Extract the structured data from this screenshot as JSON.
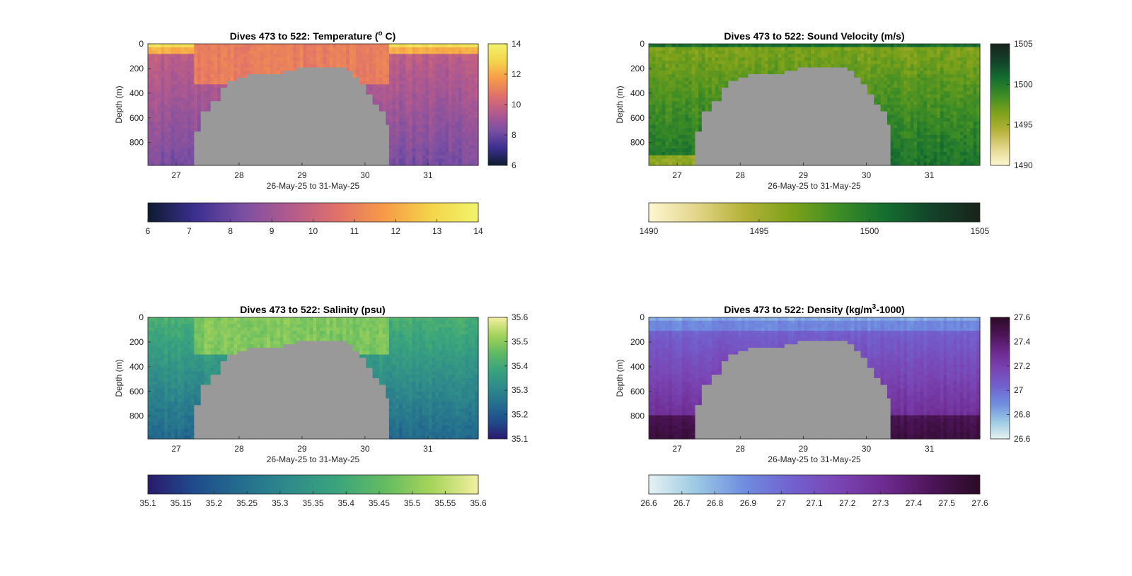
{
  "chart_data": [
    {
      "type": "heatmap",
      "variable": "temperature",
      "title_prefix": "Dives 473 to 522: Temperature (",
      "title_sup": "o",
      "title_suffix": " C)",
      "xlabel": "26-May-25 to 31-May-25",
      "ylabel": "Depth (m)",
      "x_ticks": [
        "27",
        "28",
        "29",
        "30",
        "31"
      ],
      "y_ticks": [
        "0",
        "200",
        "400",
        "600",
        "800"
      ],
      "side_colorbar_ticks": [
        "14",
        "12",
        "10",
        "8",
        "6"
      ],
      "bottom_colorbar_ticks": [
        "6",
        "7",
        "8",
        "9",
        "10",
        "11",
        "12",
        "13",
        "14"
      ],
      "clim": [
        6,
        14
      ],
      "colormap": [
        "#0d1b2f",
        "#3b2f8f",
        "#7a4fa3",
        "#b25a8e",
        "#e0706a",
        "#f79a48",
        "#f4d44a",
        "#f2f46c"
      ]
    },
    {
      "type": "heatmap",
      "variable": "sound_velocity",
      "title_prefix": "Dives 473 to 522: Sound Velocity (m/s)",
      "title_sup": "",
      "title_suffix": "",
      "xlabel": "26-May-25 to 31-May-25",
      "ylabel": "Depth (m)",
      "x_ticks": [
        "27",
        "28",
        "29",
        "30",
        "31"
      ],
      "y_ticks": [
        "0",
        "200",
        "400",
        "600",
        "800"
      ],
      "side_colorbar_ticks": [
        "1505",
        "1500",
        "1495",
        "1490"
      ],
      "bottom_colorbar_ticks": [
        "1490",
        "1495",
        "1500",
        "1505"
      ],
      "clim": [
        1490,
        1505
      ],
      "colormap": [
        "#fdf7d2",
        "#e3d58a",
        "#b5b23a",
        "#7ea21a",
        "#3f8d25",
        "#146e30",
        "#13422a",
        "#18231a"
      ]
    },
    {
      "type": "heatmap",
      "variable": "salinity",
      "title_prefix": "Dives 473 to 522: Salinity (psu)",
      "title_sup": "",
      "title_suffix": "",
      "xlabel": "26-May-25 to 31-May-25",
      "ylabel": "Depth (m)",
      "x_ticks": [
        "27",
        "28",
        "29",
        "30",
        "31"
      ],
      "y_ticks": [
        "0",
        "200",
        "400",
        "600",
        "800"
      ],
      "side_colorbar_ticks": [
        "35.6",
        "35.5",
        "35.4",
        "35.3",
        "35.2",
        "35.1"
      ],
      "bottom_colorbar_ticks": [
        "35.1",
        "35.15",
        "35.2",
        "35.25",
        "35.3",
        "35.35",
        "35.4",
        "35.45",
        "35.5",
        "35.55",
        "35.6"
      ],
      "clim": [
        35.1,
        35.6
      ],
      "colormap": [
        "#2a1a6e",
        "#1f4c8c",
        "#246e8e",
        "#2f8b8a",
        "#3aa47d",
        "#63bb62",
        "#a6d45a",
        "#f3efa0"
      ]
    },
    {
      "type": "heatmap",
      "variable": "density",
      "title_prefix": "Dives 473 to 522: Density (kg/m",
      "title_sup": "3",
      "title_suffix": "-1000)",
      "xlabel": "26-May-25 to 31-May-25",
      "ylabel": "Depth (m)",
      "x_ticks": [
        "27",
        "28",
        "29",
        "30",
        "31"
      ],
      "y_ticks": [
        "0",
        "200",
        "400",
        "600",
        "800"
      ],
      "side_colorbar_ticks": [
        "27.6",
        "27.4",
        "27.2",
        "27",
        "26.8",
        "26.6"
      ],
      "bottom_colorbar_ticks": [
        "26.6",
        "26.7",
        "26.8",
        "26.9",
        "27",
        "27.1",
        "27.2",
        "27.3",
        "27.4",
        "27.5",
        "27.6"
      ],
      "clim": [
        26.6,
        27.6
      ],
      "colormap": [
        "#e6f2f2",
        "#9cc9e4",
        "#6f8ee0",
        "#7162cf",
        "#7a45b4",
        "#6d2a8f",
        "#4c1457",
        "#2b0a26"
      ]
    }
  ],
  "colors": {
    "background": "#ffffff",
    "no_data": "#999999",
    "axis": "#262626"
  }
}
